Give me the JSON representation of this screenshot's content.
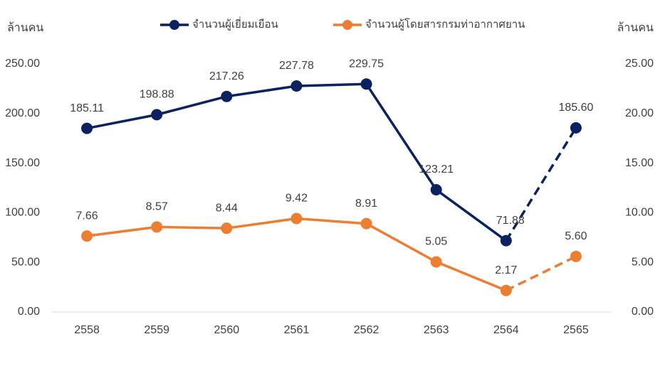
{
  "chart_data": {
    "type": "line",
    "y_label": "ล้านคน",
    "y2_label": "ล้านคน",
    "categories": [
      "2558",
      "2559",
      "2560",
      "2561",
      "2562",
      "2563",
      "2564",
      "2565"
    ],
    "series": [
      {
        "name": "จำนวนผู้เยี่ยมเยือน",
        "color": "#0b2160",
        "values": [
          185.11,
          198.88,
          217.26,
          227.78,
          229.75,
          123.21,
          71.88,
          185.6
        ],
        "value_labels": [
          "185.11",
          "198.88",
          "217.26",
          "227.78",
          "229.75",
          "123.21",
          "71.88",
          "185.60"
        ]
      },
      {
        "name": "จำนวนผู้โดยสารกรมท่าอากาศยาน",
        "color": "#ed7d31",
        "axis": "y2",
        "values": [
          7.66,
          8.57,
          8.44,
          9.42,
          8.91,
          5.05,
          2.17,
          5.6
        ],
        "value_labels": [
          "7.66",
          "8.57",
          "8.44",
          "9.42",
          "8.91",
          "5.05",
          "2.17",
          "5.60"
        ]
      }
    ],
    "ylim": [
      0,
      250
    ],
    "yticks": [
      {
        "value": 0,
        "label": "0.00"
      },
      {
        "value": 50,
        "label": "50.00"
      },
      {
        "value": 100,
        "label": "100.00"
      },
      {
        "value": 150,
        "label": "150.00"
      },
      {
        "value": 200,
        "label": "200.00"
      },
      {
        "value": 250,
        "label": "250.00"
      }
    ],
    "y2lim": [
      0,
      25
    ],
    "y2ticks": [
      {
        "value": 0,
        "label": "0.00"
      },
      {
        "value": 5,
        "label": "5.00"
      },
      {
        "value": 10,
        "label": "10.00"
      },
      {
        "value": 15,
        "label": "15.00"
      },
      {
        "value": 20,
        "label": "20.00"
      },
      {
        "value": 25,
        "label": "25.00"
      }
    ],
    "grid": false
  }
}
